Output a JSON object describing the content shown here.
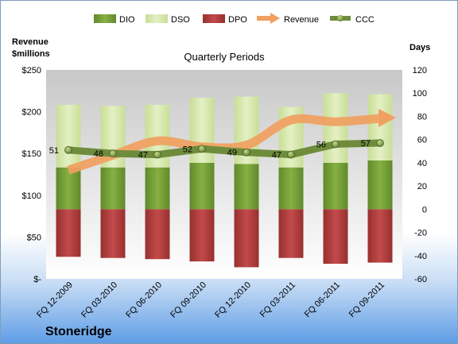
{
  "chart_data": {
    "type": "bar",
    "title": "Quarterly Periods",
    "company": "Stoneridge",
    "y_left_label_line1": "Revenue",
    "y_left_label_line2": "$millions",
    "y_right_label": "Days",
    "y_left_ticks": [
      "$250",
      "$200",
      "$150",
      "$100",
      "$50",
      "$-"
    ],
    "y_left_range": [
      0,
      250
    ],
    "y_right_ticks": [
      "120",
      "100",
      "80",
      "60",
      "40",
      "20",
      "0",
      "-20",
      "-40",
      "-60"
    ],
    "y_right_range": [
      -60,
      120
    ],
    "categories": [
      "FQ 12-2009",
      "FQ 03-2010",
      "FQ 06-2010",
      "FQ 09-2010",
      "FQ 12-2010",
      "FQ 03-2011",
      "FQ 06-2011",
      "FQ 09-2011"
    ],
    "series": [
      {
        "name": "DIO",
        "axis": "right",
        "color": "#77a035",
        "values": [
          36,
          36,
          36,
          40,
          39,
          36,
          40,
          42
        ]
      },
      {
        "name": "DSO",
        "axis": "right",
        "color": "#d7e8ae",
        "values": [
          54,
          53,
          54,
          56,
          58,
          52,
          60,
          57
        ]
      },
      {
        "name": "DPO",
        "axis": "right",
        "color": "#b0393b",
        "values": [
          41,
          42,
          43,
          45,
          50,
          42,
          47,
          46
        ]
      },
      {
        "name": "Revenue",
        "axis": "left",
        "color": "#f0a060",
        "values": [
          130,
          148,
          165,
          158,
          160,
          190,
          188,
          192
        ]
      },
      {
        "name": "CCC",
        "axis": "right",
        "color": "#6e8c3c",
        "values": [
          51,
          48,
          47,
          52,
          49,
          47,
          56,
          57
        ]
      }
    ],
    "ccc_labels": [
      "51",
      "48",
      "47",
      "52",
      "49",
      "47",
      "56",
      "57"
    ],
    "legend": [
      "DIO",
      "DSO",
      "DPO",
      "Revenue",
      "CCC"
    ],
    "legend_position": "top",
    "grid": false
  }
}
